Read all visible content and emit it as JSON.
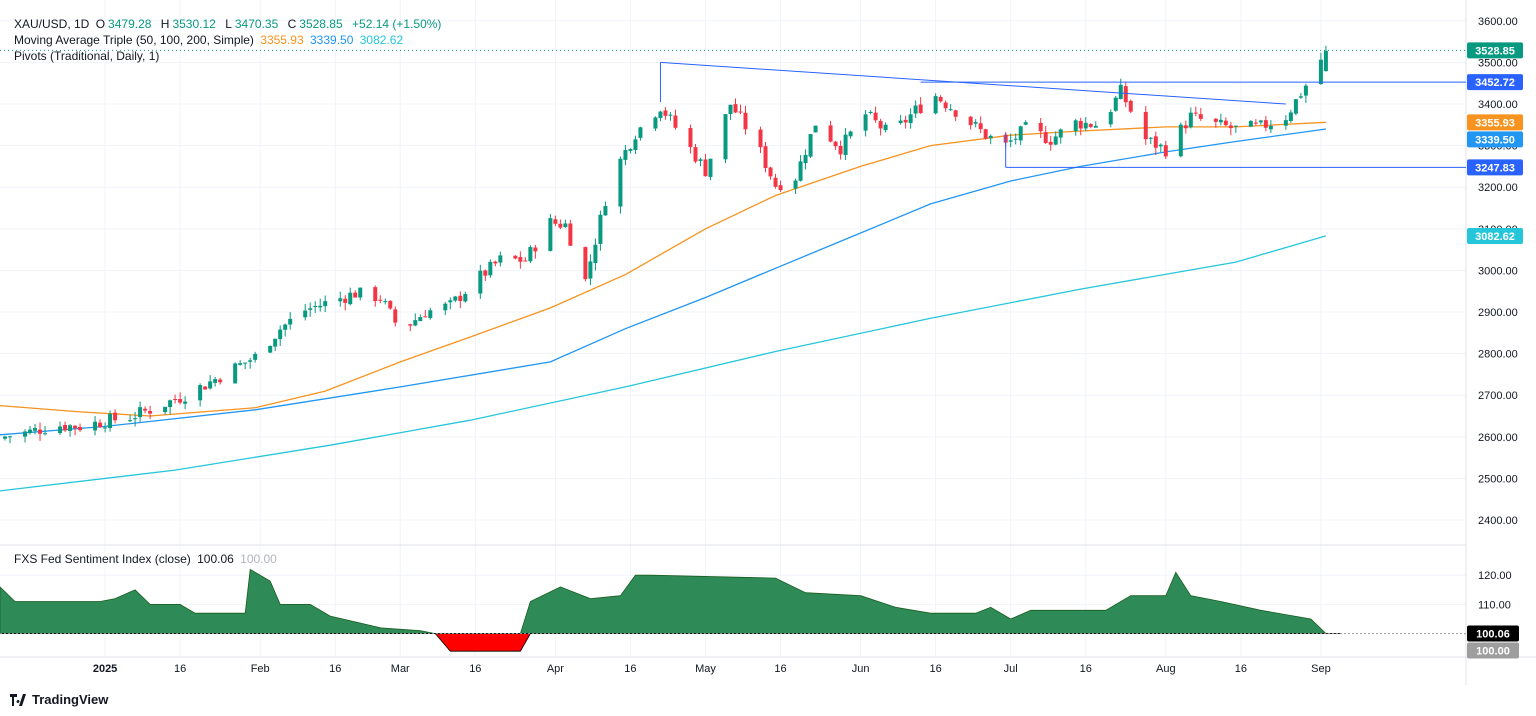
{
  "header": {
    "symbol": "XAU/USD, 1D",
    "ohlc": [
      {
        "label": "O",
        "value": "3479.28"
      },
      {
        "label": "H",
        "value": "3530.12"
      },
      {
        "label": "L",
        "value": "3470.35"
      },
      {
        "label": "C",
        "value": "3528.85"
      }
    ],
    "change": "+52.14 (+1.50%)",
    "ma_label": "Moving Average Triple (50, 100, 200, Simple)",
    "ma_values": [
      "3355.93",
      "3339.50",
      "3082.62"
    ],
    "pivots_label": "Pivots (Traditional, Daily, 1)",
    "indicator_label": "FXS Fed Sentiment Index (close)",
    "indicator_value": "100.06",
    "indicator_value2": "100.00"
  },
  "branding": {
    "name": "TradingView"
  },
  "colors": {
    "up": "#089981",
    "down": "#f23645",
    "ma50": "#f7931e",
    "ma100": "#2196f3",
    "ma200": "#26c6da",
    "trend": "#2962ff",
    "fill_up": "#2e8b57",
    "fill_down": "#ff0000"
  },
  "chart_data": [
    {
      "type": "candlestick",
      "title": "XAU/USD, 1D",
      "y_ticks": [
        2400,
        2500,
        2600,
        2700,
        2800,
        2900,
        3000,
        3100,
        3200,
        3300,
        3400,
        3500,
        3600
      ],
      "y_tick_labels": [
        "2400.00",
        "2500.00",
        "2600.00",
        "2700.00",
        "2800.00",
        "2900.00",
        "3000.00",
        "3100.00",
        "3200.00",
        "3300.00",
        "3400.00",
        "3500.00",
        "3600.00"
      ],
      "ylim": [
        2340,
        3650
      ],
      "x_ticks": [
        {
          "label": "2025",
          "date": "2025-01-01"
        },
        {
          "label": "16",
          "date": "2025-01-16"
        },
        {
          "label": "Feb",
          "date": "2025-02-01"
        },
        {
          "label": "16",
          "date": "2025-02-16"
        },
        {
          "label": "Mar",
          "date": "2025-03-01"
        },
        {
          "label": "16",
          "date": "2025-03-16"
        },
        {
          "label": "Apr",
          "date": "2025-04-01"
        },
        {
          "label": "16",
          "date": "2025-04-16"
        },
        {
          "label": "May",
          "date": "2025-05-01"
        },
        {
          "label": "16",
          "date": "2025-05-16"
        },
        {
          "label": "Jun",
          "date": "2025-06-01"
        },
        {
          "label": "16",
          "date": "2025-06-16"
        },
        {
          "label": "Jul",
          "date": "2025-07-01"
        },
        {
          "label": "16",
          "date": "2025-07-16"
        },
        {
          "label": "Aug",
          "date": "2025-08-01"
        },
        {
          "label": "16",
          "date": "2025-08-16"
        },
        {
          "label": "Sep",
          "date": "2025-09-01"
        }
      ],
      "xlim": [
        "2024-12-11",
        "2025-09-30"
      ],
      "close_series": [
        [
          "2024-12-12",
          2601
        ],
        [
          "2024-12-17",
          2612
        ],
        [
          "2024-12-22",
          2628
        ],
        [
          "2024-12-27",
          2625
        ],
        [
          "2025-01-01",
          2638
        ],
        [
          "2025-01-06",
          2648
        ],
        [
          "2025-01-11",
          2670
        ],
        [
          "2025-01-16",
          2695
        ],
        [
          "2025-01-21",
          2725
        ],
        [
          "2025-01-26",
          2760
        ],
        [
          "2025-01-31",
          2792
        ],
        [
          "2025-02-05",
          2860
        ],
        [
          "2025-02-10",
          2905
        ],
        [
          "2025-02-15",
          2925
        ],
        [
          "2025-02-20",
          2945
        ],
        [
          "2025-02-25",
          2935
        ],
        [
          "2025-03-01",
          2855
        ],
        [
          "2025-03-06",
          2900
        ],
        [
          "2025-03-11",
          2915
        ],
        [
          "2025-03-16",
          2975
        ],
        [
          "2025-03-21",
          3025
        ],
        [
          "2025-03-26",
          3025
        ],
        [
          "2025-03-31",
          3115
        ],
        [
          "2025-04-03",
          3110
        ],
        [
          "2025-04-07",
          2975
        ],
        [
          "2025-04-12",
          3220
        ],
        [
          "2025-04-17",
          3330
        ],
        [
          "2025-04-22",
          3395
        ],
        [
          "2025-04-27",
          3310
        ],
        [
          "2025-05-01",
          3240
        ],
        [
          "2025-05-06",
          3400
        ],
        [
          "2025-05-11",
          3310
        ],
        [
          "2025-05-15",
          3205
        ],
        [
          "2025-05-19",
          3225
        ],
        [
          "2025-05-23",
          3355
        ],
        [
          "2025-05-28",
          3295
        ],
        [
          "2025-06-02",
          3375
        ],
        [
          "2025-06-07",
          3325
        ],
        [
          "2025-06-12",
          3385
        ],
        [
          "2025-06-16",
          3420
        ],
        [
          "2025-06-21",
          3375
        ],
        [
          "2025-06-26",
          3325
        ],
        [
          "2025-06-30",
          3300
        ],
        [
          "2025-07-04",
          3340
        ],
        [
          "2025-07-09",
          3315
        ],
        [
          "2025-07-14",
          3355
        ],
        [
          "2025-07-19",
          3350
        ],
        [
          "2025-07-23",
          3430
        ],
        [
          "2025-07-28",
          3315
        ],
        [
          "2025-08-01",
          3290
        ],
        [
          "2025-08-06",
          3370
        ],
        [
          "2025-08-11",
          3350
        ],
        [
          "2025-08-15",
          3340
        ],
        [
          "2025-08-20",
          3345
        ],
        [
          "2025-08-25",
          3370
        ],
        [
          "2025-08-29",
          3445
        ],
        [
          "2025-09-02",
          3528
        ]
      ],
      "ma50": [
        [
          "2024-12-11",
          2675
        ],
        [
          "2024-12-27",
          2660
        ],
        [
          "2025-01-10",
          2650
        ],
        [
          "2025-01-31",
          2670
        ],
        [
          "2025-02-14",
          2710
        ],
        [
          "2025-03-01",
          2780
        ],
        [
          "2025-03-15",
          2840
        ],
        [
          "2025-03-31",
          2910
        ],
        [
          "2025-04-15",
          2990
        ],
        [
          "2025-05-01",
          3100
        ],
        [
          "2025-05-15",
          3180
        ],
        [
          "2025-06-01",
          3250
        ],
        [
          "2025-06-15",
          3300
        ],
        [
          "2025-07-01",
          3325
        ],
        [
          "2025-07-15",
          3335
        ],
        [
          "2025-08-01",
          3345
        ],
        [
          "2025-08-15",
          3345
        ],
        [
          "2025-09-02",
          3356
        ]
      ],
      "ma100": [
        [
          "2024-12-11",
          2605
        ],
        [
          "2025-01-01",
          2625
        ],
        [
          "2025-01-31",
          2665
        ],
        [
          "2025-03-01",
          2720
        ],
        [
          "2025-03-31",
          2780
        ],
        [
          "2025-04-15",
          2860
        ],
        [
          "2025-05-01",
          2935
        ],
        [
          "2025-05-15",
          3005
        ],
        [
          "2025-06-01",
          3090
        ],
        [
          "2025-06-15",
          3160
        ],
        [
          "2025-07-01",
          3215
        ],
        [
          "2025-07-15",
          3250
        ],
        [
          "2025-08-01",
          3285
        ],
        [
          "2025-08-15",
          3310
        ],
        [
          "2025-09-02",
          3340
        ]
      ],
      "ma200": [
        [
          "2024-12-11",
          2470
        ],
        [
          "2025-01-15",
          2520
        ],
        [
          "2025-02-15",
          2580
        ],
        [
          "2025-03-15",
          2640
        ],
        [
          "2025-04-15",
          2720
        ],
        [
          "2025-05-15",
          2805
        ],
        [
          "2025-06-15",
          2885
        ],
        [
          "2025-07-15",
          2955
        ],
        [
          "2025-08-15",
          3020
        ],
        [
          "2025-09-02",
          3083
        ]
      ],
      "trendlines": [
        {
          "from": [
            "2025-04-22",
            3500
          ],
          "to": [
            "2025-08-25",
            3400
          ]
        },
        {
          "from": [
            "2025-04-22",
            3500
          ],
          "to": [
            "2025-04-22",
            3405
          ]
        },
        {
          "from": [
            "2025-06-13",
            3452.72
          ],
          "to": [
            "2025-09-30",
            3452.72
          ]
        },
        {
          "from": [
            "2025-06-30",
            3247.83
          ],
          "to": [
            "2025-09-30",
            3247.83
          ]
        },
        {
          "from": [
            "2025-06-30",
            3247.83
          ],
          "to": [
            "2025-06-30",
            3330
          ]
        }
      ],
      "price_labels": [
        {
          "value": 3528.85,
          "text": "3528.85",
          "color": "#089981"
        },
        {
          "value": 3452.72,
          "text": "3452.72",
          "color": "#2962ff"
        },
        {
          "value": 3355.93,
          "text": "3355.93",
          "color": "#f7931e"
        },
        {
          "value": 3339.5,
          "text": "3339.50",
          "color": "#2196f3"
        },
        {
          "value": 3247.83,
          "text": "3247.83",
          "color": "#2962ff"
        },
        {
          "value": 3082.62,
          "text": "3082.62",
          "color": "#26c6da"
        }
      ]
    },
    {
      "type": "area",
      "title": "FXS Fed Sentiment Index (close)",
      "y_ticks": [
        110,
        120
      ],
      "y_tick_labels": [
        "110.00",
        "120.00"
      ],
      "ylim": [
        92,
        130
      ],
      "baseline": 100,
      "series": [
        [
          "2024-12-11",
          116
        ],
        [
          "2024-12-14",
          111
        ],
        [
          "2024-12-31",
          111
        ],
        [
          "2025-01-03",
          112
        ],
        [
          "2025-01-07",
          115
        ],
        [
          "2025-01-10",
          110
        ],
        [
          "2025-01-16",
          110
        ],
        [
          "2025-01-19",
          107
        ],
        [
          "2025-01-29",
          107
        ],
        [
          "2025-01-30",
          122
        ],
        [
          "2025-02-03",
          118
        ],
        [
          "2025-02-05",
          110
        ],
        [
          "2025-02-11",
          110
        ],
        [
          "2025-02-15",
          106
        ],
        [
          "2025-02-20",
          104
        ],
        [
          "2025-02-25",
          102
        ],
        [
          "2025-03-05",
          101
        ],
        [
          "2025-03-08",
          100
        ],
        [
          "2025-03-11",
          94
        ],
        [
          "2025-03-25",
          94
        ],
        [
          "2025-03-27",
          111
        ],
        [
          "2025-04-02",
          116
        ],
        [
          "2025-04-08",
          112
        ],
        [
          "2025-04-14",
          113
        ],
        [
          "2025-04-17",
          120
        ],
        [
          "2025-04-20",
          120
        ],
        [
          "2025-05-15",
          119
        ],
        [
          "2025-05-21",
          114
        ],
        [
          "2025-06-01",
          113
        ],
        [
          "2025-06-08",
          109
        ],
        [
          "2025-06-15",
          107
        ],
        [
          "2025-06-24",
          107
        ],
        [
          "2025-06-27",
          109
        ],
        [
          "2025-07-01",
          105
        ],
        [
          "2025-07-05",
          108
        ],
        [
          "2025-07-20",
          108
        ],
        [
          "2025-07-25",
          113
        ],
        [
          "2025-08-01",
          113
        ],
        [
          "2025-08-03",
          121
        ],
        [
          "2025-08-06",
          113
        ],
        [
          "2025-08-12",
          111
        ],
        [
          "2025-08-20",
          108
        ],
        [
          "2025-08-30",
          105
        ],
        [
          "2025-09-02",
          100.06
        ],
        [
          "2025-09-05",
          100
        ]
      ],
      "price_labels": [
        {
          "value": 100.06,
          "text": "100.06",
          "color": "#000000"
        },
        {
          "value": 100.0,
          "text": "100.00",
          "color": "#9e9e9e"
        }
      ]
    }
  ]
}
